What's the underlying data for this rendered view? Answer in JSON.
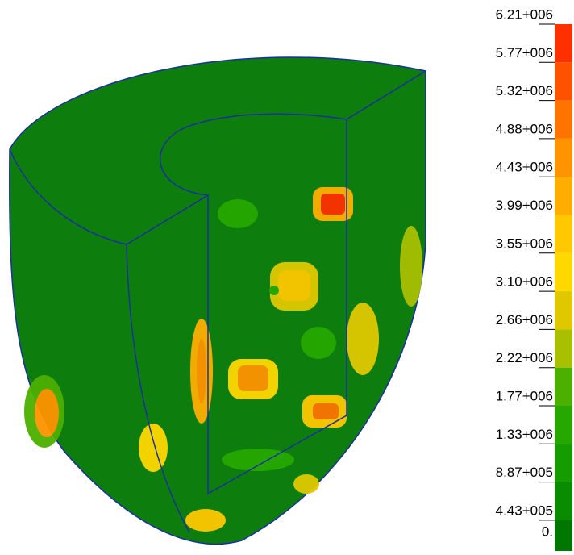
{
  "legend": {
    "labels": [
      "6.21+006",
      "5.77+006",
      "5.32+006",
      "4.88+006",
      "4.43+006",
      "3.99+006",
      "3.55+006",
      "3.10+006",
      "2.66+006",
      "2.22+006",
      "1.77+006",
      "1.33+006",
      "8.87+005",
      "4.43+005",
      "0."
    ],
    "colors": [
      "#ff3000",
      "#ff5200",
      "#ff7400",
      "#ff9400",
      "#ffae00",
      "#ffc800",
      "#ffd800",
      "#e0c800",
      "#a8c000",
      "#4cb000",
      "#26a800",
      "#149c00",
      "#0a8c00",
      "#007800"
    ]
  }
}
